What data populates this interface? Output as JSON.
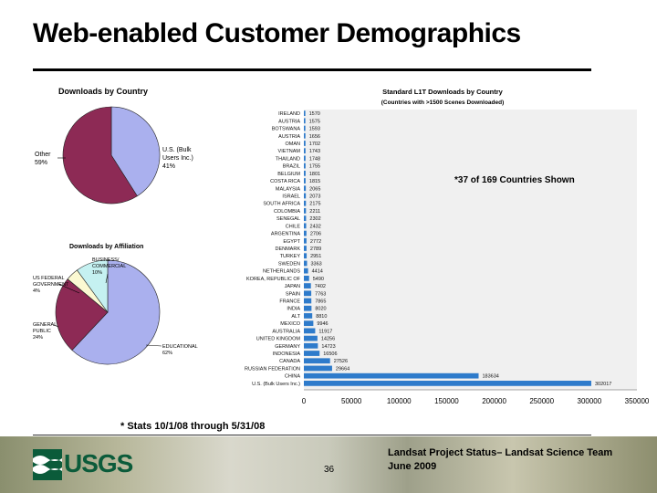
{
  "slide": {
    "title": "Web-enabled Customer Demographics",
    "stats_note": "* Stats 10/1/08 through 5/31/08",
    "page_number": "36",
    "footer_line1": "Landsat Project Status– Landsat Science Team",
    "footer_line2": "June 2009",
    "logo_text": "USGS"
  },
  "chart_data": [
    {
      "type": "pie",
      "title": "Downloads by Country",
      "slices": [
        {
          "label": "U.S. (Bulk Users Inc.)",
          "value": 41,
          "display": "41%",
          "color": "#aab0ee"
        },
        {
          "label": "Other",
          "value": 59,
          "display": "59%",
          "color": "#8d2a55"
        }
      ]
    },
    {
      "type": "pie",
      "title": "Downloads by Affiliation",
      "slices": [
        {
          "label": "EDUCATIONAL",
          "value": 62,
          "display": "62%",
          "color": "#aab0ee"
        },
        {
          "label": "GENERAL PUBLIC",
          "value": 24,
          "display": "24%",
          "color": "#8d2a55"
        },
        {
          "label": "US FEDERAL GOVERNMENT",
          "value": 4,
          "display": "4%",
          "color": "#fbf9d2"
        },
        {
          "label": "BUSINESS/ COMMERCIAL",
          "value": 10,
          "display": "10%",
          "color": "#c5f1f1"
        }
      ]
    },
    {
      "type": "bar",
      "orientation": "horizontal",
      "title": "Standard L1T Downloads by Country",
      "subtitle": "(Countries with >1500 Scenes Downloaded)",
      "annotation": "*37 of 169 Countries Shown",
      "bar_color": "#2e7bcb",
      "xlim": [
        0,
        350000
      ],
      "xticks": [
        0,
        50000,
        100000,
        150000,
        200000,
        250000,
        300000,
        350000
      ],
      "grid": false,
      "categories": [
        "IRELAND",
        "AUSTRIA",
        "BOTSWANA",
        "AUSTRIA",
        "OMAN",
        "VIETNAM",
        "THAILAND",
        "BRAZIL",
        "BELGIUM",
        "COSTA RICA",
        "MALAYSIA",
        "ISRAEL",
        "SOUTH AFRICA",
        "COLOMBIA",
        "SENEGAL",
        "CHILE",
        "ARGENTINA",
        "EGYPT",
        "DENMARK",
        "TURKEY",
        "SWEDEN",
        "NETHERLANDS",
        "KOREA, REPUBLIC OF",
        "JAPAN",
        "SPAIN",
        "FRANCE",
        "INDIA",
        "ALT",
        "MEXICO",
        "AUSTRALIA",
        "UNITED KINGDOM",
        "GERMANY",
        "INDONESIA",
        "CANADA",
        "RUSSIAN FEDERATION",
        "CHINA",
        "U.S. (Bulk Users Inc.)"
      ],
      "values": [
        1570,
        1575,
        1593,
        1656,
        1702,
        1743,
        1748,
        1755,
        1801,
        1815,
        2065,
        2073,
        2175,
        2211,
        2302,
        2432,
        2706,
        2772,
        2789,
        2951,
        3363,
        4414,
        5490,
        7402,
        7763,
        7865,
        8020,
        8810,
        9946,
        11917,
        14256,
        14723,
        16506,
        27526,
        29664,
        183634,
        302017
      ],
      "value_labels": [
        "1570",
        "1575",
        "1593",
        "1656",
        "1702",
        "1743",
        "1748",
        "1755",
        "1801",
        "1815",
        "2065",
        "2073",
        "2175",
        "2211",
        "2302",
        "2432",
        "2706",
        "2772",
        "2789",
        "2951",
        "3363",
        "4414",
        "5490",
        "7402",
        "7763",
        "7865",
        "8020",
        "8810",
        "9946",
        "11917",
        "14256",
        "14723",
        "16506",
        "27526",
        "29664",
        "183634",
        "302017"
      ]
    }
  ]
}
